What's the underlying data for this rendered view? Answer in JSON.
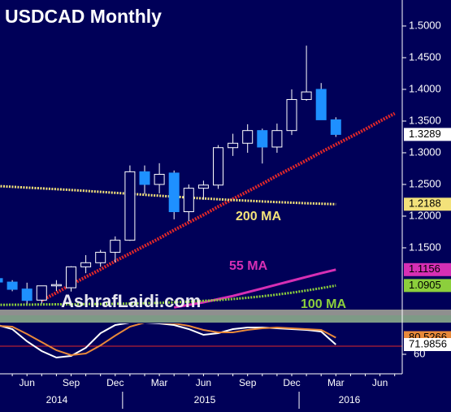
{
  "chart_data": {
    "type": "candlestick",
    "title": "USDCAD Monthly",
    "watermark": "AshrafLaidi.com",
    "categories": [
      null,
      null,
      "Jun",
      null,
      null,
      "Sep",
      null,
      null,
      "Dec",
      null,
      null,
      "Mar",
      null,
      null,
      "Jun",
      null,
      null,
      "Sep",
      null,
      null,
      "Dec",
      null,
      null,
      "Mar",
      null,
      null,
      "Jun",
      null
    ],
    "year_labels": [
      "2014",
      "2015",
      "2016"
    ],
    "open": [
      1.1015,
      1.096,
      1.085,
      1.0675,
      1.09,
      1.087,
      1.12,
      1.1265,
      1.143,
      1.162,
      1.27,
      1.25,
      1.268,
      1.207,
      1.244,
      1.249,
      1.308,
      1.315,
      1.335,
      1.309,
      1.335,
      1.384,
      1.4,
      1.352,
      null,
      null,
      null,
      null
    ],
    "high": [
      1.1052,
      1.099,
      1.095,
      1.089,
      1.099,
      1.121,
      1.1385,
      1.1467,
      1.168,
      1.28,
      1.28,
      1.2835,
      1.272,
      1.25,
      1.256,
      1.312,
      1.33,
      1.345,
      1.338,
      1.346,
      1.4,
      1.469,
      1.41,
      1.356,
      null,
      null,
      null,
      null
    ],
    "low": [
      1.09,
      1.0815,
      1.062,
      1.062,
      1.082,
      1.081,
      1.11,
      1.12,
      1.127,
      1.161,
      1.235,
      1.236,
      1.195,
      1.192,
      1.226,
      1.243,
      1.295,
      1.3,
      1.283,
      1.3,
      1.328,
      1.382,
      1.352,
      1.325,
      null,
      null,
      null,
      null
    ],
    "close": [
      1.096,
      1.0845,
      1.067,
      1.09,
      1.092,
      1.12,
      1.1265,
      1.143,
      1.162,
      1.27,
      1.25,
      1.266,
      1.207,
      1.244,
      1.249,
      1.308,
      1.315,
      1.335,
      1.309,
      1.335,
      1.384,
      1.396,
      1.352,
      1.3289,
      null,
      null,
      null,
      null
    ],
    "up_color": "#000058",
    "down_color": "#1e90ff",
    "ylim": [
      1.0538,
      1.541
    ],
    "yticks": [
      {
        "value": 1.15,
        "label": "1.1500"
      },
      {
        "value": 1.2,
        "label": "1.2000"
      },
      {
        "value": 1.25,
        "label": "1.2500"
      },
      {
        "value": 1.3,
        "label": "1.3000"
      },
      {
        "value": 1.35,
        "label": "1.3500"
      },
      {
        "value": 1.4,
        "label": "1.4000"
      },
      {
        "value": 1.45,
        "label": "1.4500"
      },
      {
        "value": 1.5,
        "label": "1.5000"
      }
    ],
    "series": [
      {
        "name": "200 MA",
        "color": "#f3e27a",
        "values": [
          1.2475,
          1.2462,
          1.245,
          1.2438,
          1.2425,
          1.2412,
          1.2398,
          1.2383,
          1.2368,
          1.2352,
          1.2337,
          1.2322,
          1.2307,
          1.2292,
          1.2279,
          1.2266,
          1.2254,
          1.2243,
          1.2232,
          1.2222,
          1.2212,
          1.2204,
          1.2196,
          1.2188,
          null,
          null,
          null,
          null
        ]
      },
      {
        "name": "55 MA",
        "color": "#d62fb4",
        "values": [
          null,
          null,
          null,
          null,
          null,
          null,
          null,
          null,
          null,
          null,
          null,
          null,
          1.056,
          1.06,
          1.064,
          1.069,
          1.074,
          1.08,
          1.086,
          1.092,
          1.098,
          1.104,
          1.11,
          1.1156,
          null,
          null,
          null,
          null
        ]
      },
      {
        "name": "100 MA",
        "color": "#8ccf3c",
        "values": [
          1.06,
          1.0602,
          1.0604,
          1.0606,
          1.0608,
          1.061,
          1.0612,
          1.0614,
          1.0617,
          1.062,
          1.0625,
          1.0632,
          1.064,
          1.065,
          1.0662,
          1.0676,
          1.0692,
          1.0712,
          1.0735,
          1.0762,
          1.0792,
          1.0826,
          1.0864,
          1.0905,
          null,
          null,
          null,
          null
        ]
      }
    ],
    "trendline": {
      "color": "#e0282a",
      "values": [
        null,
        null,
        null,
        1.067,
        1.079,
        1.092,
        1.104,
        1.116,
        1.129,
        1.141,
        1.153,
        1.165,
        1.178,
        1.19,
        1.202,
        1.215,
        1.227,
        1.239,
        1.251,
        1.264,
        1.276,
        1.288,
        1.301,
        1.313,
        1.325,
        1.337,
        1.35,
        1.362
      ]
    },
    "oscillator": {
      "ylim": [
        36,
        96
      ],
      "yticks": [
        60
      ],
      "hline": 70,
      "hline_color": "#e0282a",
      "series": [
        {
          "color": "#ffffff",
          "values": [
            96,
            91,
            76,
            64,
            56,
            58,
            68,
            86,
            96,
            99,
            99,
            98,
            96,
            91,
            84,
            86,
            91,
            93,
            93,
            92,
            91,
            90,
            88,
            71.9856,
            null,
            null,
            null,
            null
          ]
        },
        {
          "color": "#e8893a",
          "values": [
            95,
            94,
            85,
            75,
            65,
            59,
            61,
            71,
            83,
            94,
            99,
            99,
            98,
            95,
            90,
            87,
            87,
            90,
            92,
            93,
            92,
            91,
            90,
            80.5266,
            null,
            null,
            null,
            null
          ]
        }
      ]
    }
  }
}
